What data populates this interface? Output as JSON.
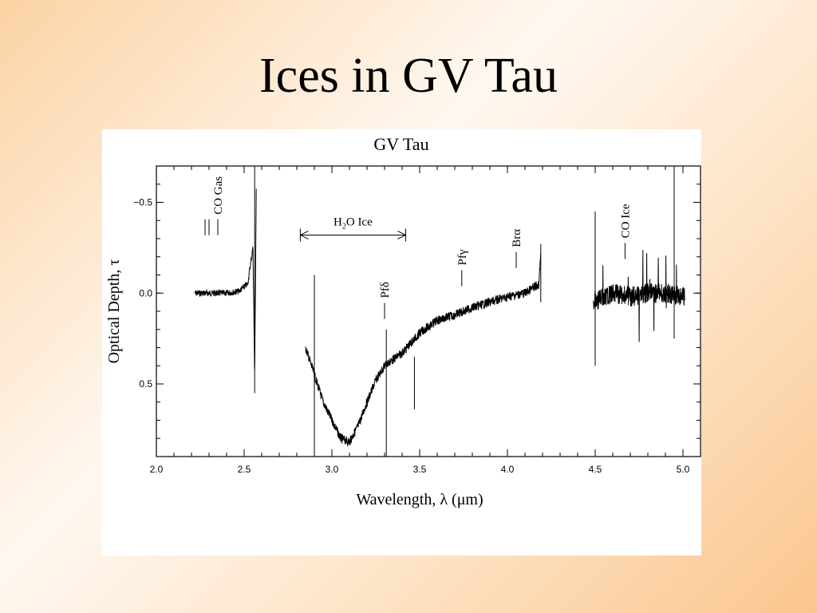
{
  "slide": {
    "title": "Ices in GV Tau"
  },
  "chart_data": {
    "type": "line",
    "title": "GV Tau",
    "xlabel": "Wavelength, λ (μm)",
    "ylabel": "Optical Depth, τ",
    "xlim": [
      2.0,
      5.1
    ],
    "ylim": [
      0.9,
      -0.7
    ],
    "y_inverted": true,
    "x_ticks": [
      "2.0",
      "2.5",
      "3.0",
      "3.5",
      "4.0",
      "4.5",
      "5.0"
    ],
    "y_ticks": [
      "−0.5",
      "0.0",
      "0.5"
    ],
    "grid": false,
    "series": [
      {
        "segments": [
          {
            "range": [
              2.22,
              2.57
            ],
            "points": [
              [
                2.22,
                0.0
              ],
              [
                2.3,
                0.0
              ],
              [
                2.4,
                0.0
              ],
              [
                2.47,
                -0.01
              ],
              [
                2.52,
                -0.05
              ],
              [
                2.55,
                -0.25
              ],
              [
                2.56,
                0.45
              ],
              [
                2.57,
                -0.65
              ]
            ]
          },
          {
            "range": [
              2.85,
              4.19
            ],
            "points": [
              [
                2.85,
                0.3
              ],
              [
                2.9,
                0.45
              ],
              [
                2.95,
                0.6
              ],
              [
                3.0,
                0.7
              ],
              [
                3.05,
                0.8
              ],
              [
                3.1,
                0.82
              ],
              [
                3.15,
                0.73
              ],
              [
                3.2,
                0.6
              ],
              [
                3.25,
                0.48
              ],
              [
                3.3,
                0.4
              ],
              [
                3.4,
                0.33
              ],
              [
                3.5,
                0.22
              ],
              [
                3.6,
                0.15
              ],
              [
                3.7,
                0.12
              ],
              [
                3.8,
                0.08
              ],
              [
                3.9,
                0.05
              ],
              [
                4.0,
                0.02
              ],
              [
                4.1,
                0.0
              ],
              [
                4.18,
                -0.05
              ],
              [
                4.19,
                -0.25
              ]
            ]
          },
          {
            "range": [
              4.49,
              5.01
            ],
            "points": [
              [
                4.49,
                0.05
              ],
              [
                4.6,
                0.0
              ],
              [
                4.7,
                0.02
              ],
              [
                4.8,
                0.0
              ],
              [
                4.9,
                0.0
              ],
              [
                5.0,
                0.02
              ]
            ]
          }
        ]
      }
    ],
    "annotations": [
      {
        "text": "CO Gas",
        "x": 2.35,
        "y": -0.38
      },
      {
        "text": "H2O Ice",
        "range": [
          2.82,
          3.42
        ],
        "y": -0.32
      },
      {
        "text": "Pfδ",
        "x": 3.3,
        "y": 0.08
      },
      {
        "text": "Pfγ",
        "x": 3.74,
        "y": -0.1
      },
      {
        "text": "Brα",
        "x": 4.05,
        "y": -0.2
      },
      {
        "text": "CO Ice",
        "x": 4.67,
        "y": -0.25
      }
    ]
  }
}
